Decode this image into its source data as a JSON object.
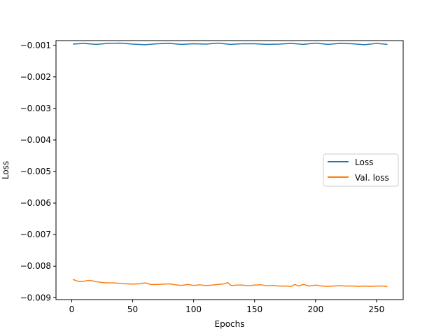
{
  "chart_data": {
    "type": "line",
    "title": "",
    "xlabel": "Epochs",
    "ylabel": "Loss",
    "xlim": [
      -12.9,
      271.9
    ],
    "ylim": [
      -0.00906,
      -0.00085
    ],
    "xticks": [
      0,
      50,
      100,
      150,
      200,
      250
    ],
    "xtick_labels": [
      "0",
      "50",
      "100",
      "150",
      "200",
      "250"
    ],
    "yticks": [
      -0.009,
      -0.008,
      -0.007,
      -0.006,
      -0.005,
      -0.004,
      -0.003,
      -0.002,
      -0.001
    ],
    "ytick_labels": [
      "−0.009",
      "−0.008",
      "−0.007",
      "−0.006",
      "−0.005",
      "−0.004",
      "−0.003",
      "−0.002",
      "−0.001"
    ],
    "grid": false,
    "legend_position": "center-right",
    "series": [
      {
        "name": "Loss",
        "color": "#1f77b4",
        "x": [
          1,
          10,
          20,
          30,
          40,
          50,
          60,
          70,
          80,
          90,
          100,
          110,
          120,
          130,
          140,
          150,
          160,
          170,
          180,
          190,
          200,
          210,
          220,
          230,
          240,
          250,
          259
        ],
        "y": [
          -0.00096,
          -0.00094,
          -0.00097,
          -0.00094,
          -0.00093,
          -0.00096,
          -0.00098,
          -0.00095,
          -0.00094,
          -0.00097,
          -0.00095,
          -0.00096,
          -0.00093,
          -0.00097,
          -0.00095,
          -0.00095,
          -0.00097,
          -0.00096,
          -0.00094,
          -0.00097,
          -0.00093,
          -0.00097,
          -0.00094,
          -0.00095,
          -0.00098,
          -0.00094,
          -0.00097
        ]
      },
      {
        "name": "Val. loss",
        "color": "#ff7f0e",
        "x": [
          1,
          3,
          6,
          9,
          12,
          15,
          20,
          25,
          30,
          35,
          40,
          45,
          50,
          55,
          60,
          65,
          70,
          75,
          80,
          85,
          90,
          95,
          100,
          105,
          110,
          115,
          120,
          125,
          128,
          131,
          135,
          140,
          145,
          150,
          155,
          160,
          165,
          170,
          175,
          180,
          183,
          186,
          190,
          195,
          200,
          205,
          210,
          215,
          220,
          225,
          230,
          235,
          240,
          245,
          250,
          255,
          259
        ],
        "y": [
          -0.00842,
          -0.00845,
          -0.00849,
          -0.00849,
          -0.00846,
          -0.00845,
          -0.00849,
          -0.00852,
          -0.00853,
          -0.00853,
          -0.00855,
          -0.00856,
          -0.00857,
          -0.00856,
          -0.00853,
          -0.00858,
          -0.00858,
          -0.00857,
          -0.00856,
          -0.00859,
          -0.00861,
          -0.00858,
          -0.00861,
          -0.00859,
          -0.00862,
          -0.0086,
          -0.00858,
          -0.00856,
          -0.00852,
          -0.00862,
          -0.0086,
          -0.0086,
          -0.00862,
          -0.0086,
          -0.00859,
          -0.00862,
          -0.00861,
          -0.00863,
          -0.00863,
          -0.00864,
          -0.00858,
          -0.00863,
          -0.00858,
          -0.00863,
          -0.0086,
          -0.00863,
          -0.00864,
          -0.00863,
          -0.00862,
          -0.00863,
          -0.00863,
          -0.00864,
          -0.00863,
          -0.00864,
          -0.00863,
          -0.00863,
          -0.00865
        ]
      }
    ]
  }
}
